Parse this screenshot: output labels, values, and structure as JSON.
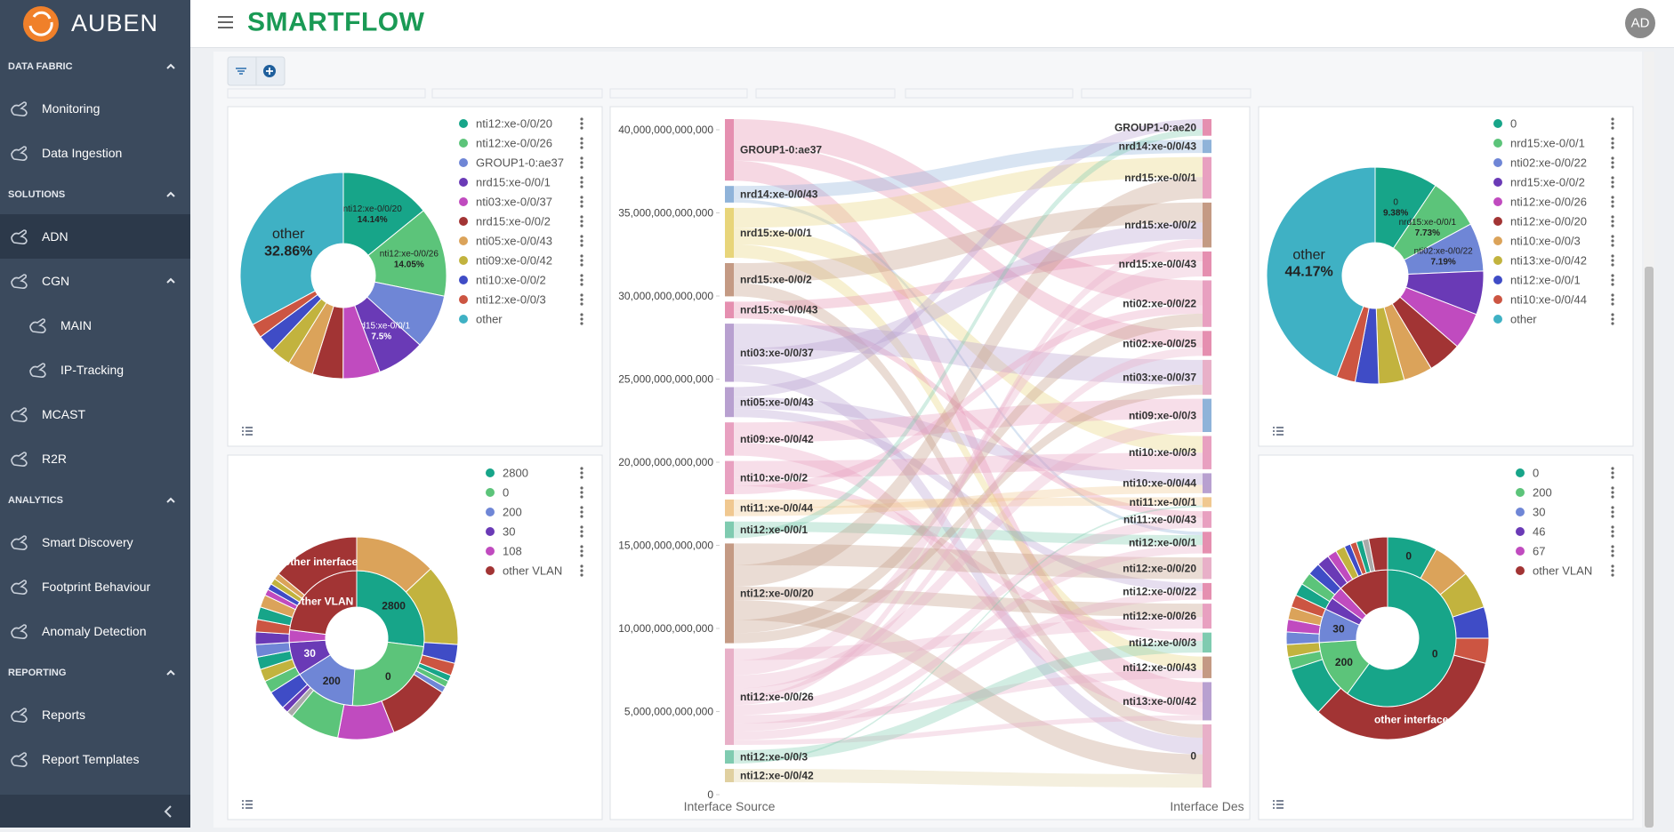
{
  "sidebar": {
    "logo": "AUBEN",
    "sections": [
      {
        "title": "DATA FABRIC",
        "items": [
          {
            "label": "Monitoring"
          },
          {
            "label": "Data Ingestion"
          }
        ]
      },
      {
        "title": "SOLUTIONS",
        "items": [
          {
            "label": "ADN",
            "active": true
          },
          {
            "label": "CGN",
            "items": [
              {
                "label": "MAIN"
              },
              {
                "label": "IP-Tracking"
              }
            ]
          },
          {
            "label": "MCAST"
          },
          {
            "label": "R2R"
          }
        ]
      },
      {
        "title": "ANALYTICS",
        "items": [
          {
            "label": "Smart Discovery"
          },
          {
            "label": "Footprint Behaviour"
          },
          {
            "label": "Anomaly Detection"
          }
        ]
      },
      {
        "title": "REPORTING",
        "items": [
          {
            "label": "Reports"
          },
          {
            "label": "Report Templates"
          }
        ]
      }
    ]
  },
  "header": {
    "brand": "SMARTFLOW",
    "avatar": "AD"
  },
  "chart_data": [
    {
      "type": "pie",
      "categories": [
        "nti12:xe-0/0/20",
        "nti12:xe-0/0/26",
        "GROUP1-0:ae37",
        "nrd15:xe-0/0/1",
        "nti03:xe-0/0/37",
        "nrd15:xe-0/0/2",
        "nti05:xe-0/0/43",
        "nti09:xe-0/0/42",
        "nti10:xe-0/0/2",
        "nti12:xe-0/0/3",
        "other"
      ],
      "values": [
        14.14,
        14.05,
        8.5,
        7.5,
        5.8,
        4.8,
        4,
        3.2,
        2.8,
        2.25,
        32.86
      ],
      "colors": [
        "#17a589",
        "#5cc47a",
        "#6f86d6",
        "#6a3ab6",
        "#c04bbf",
        "#a23434",
        "#dba35a",
        "#c2b33e",
        "#3f4cc6",
        "#cc5542",
        "#3fb1c4"
      ],
      "slice_labels": [
        "nti12:xe-0/0/20",
        "nti12:xe-0/0/26",
        null,
        "nrd15:xe-0/0/1",
        null,
        null,
        null,
        null,
        null,
        null,
        "other"
      ],
      "value_labels": [
        "14.14%",
        "14.05%",
        null,
        "7.5%",
        null,
        null,
        null,
        null,
        null,
        null,
        "32.86%"
      ]
    },
    {
      "type": "sunburst",
      "categories": [
        "2800",
        "0",
        "200",
        "30",
        "108",
        "other VLAN"
      ],
      "values": [
        27,
        24,
        15,
        8,
        3,
        23
      ],
      "colors": [
        "#17a589",
        "#5cc47a",
        "#6f86d6",
        "#6a3ab6",
        "#c04bbf",
        "#a23434"
      ],
      "slice_labels": [
        "2800",
        "0",
        "200",
        "30",
        null,
        "other VLAN"
      ],
      "outer": {
        "values": [
          13,
          13,
          3,
          2,
          1,
          1,
          1,
          10,
          9,
          8,
          1,
          1,
          3,
          2,
          2,
          2,
          2,
          2,
          2,
          2,
          2,
          1,
          1,
          1,
          1,
          14
        ],
        "colors": [
          "#dba35a",
          "#c2b33e",
          "#3f4cc6",
          "#cc5542",
          "#17a589",
          "#5cc47a",
          "#6f86d6",
          "#a23434",
          "#c04bbf",
          "#5cc47a",
          "#aaaaaa",
          "#6a3ab6",
          "#3f4cc6",
          "#5cc47a",
          "#c2b33e",
          "#17a589",
          "#6f86d6",
          "#6a3ab6",
          "#cc5542",
          "#17a589",
          "#dba35a",
          "#c04bbf",
          "#3f4cc6",
          "#c2b33e",
          "#dba35a",
          "#a23434"
        ],
        "labels": [
          null,
          null,
          null,
          null,
          null,
          null,
          null,
          null,
          null,
          null,
          null,
          null,
          null,
          null,
          null,
          null,
          null,
          null,
          null,
          null,
          null,
          null,
          null,
          null,
          null,
          "other interface"
        ]
      }
    },
    {
      "type": "sankey",
      "ylim": [
        0,
        40000000000000
      ],
      "yticks": [
        0,
        {
          "value": 5000000000000,
          "label": "5,000,000,000,000"
        },
        {
          "value": 10000000000000,
          "label": "10,000,000,000,000"
        },
        {
          "value": 15000000000000,
          "label": "15,000,000,000,000"
        },
        {
          "value": 20000000000000,
          "label": "20,000,000,000,000"
        },
        {
          "value": 25000000000000,
          "label": "25,000,000,000,000"
        },
        {
          "value": 30000000000000,
          "label": "30,000,000,000,000"
        },
        {
          "value": 35000000000000,
          "label": "35,000,000,000,000"
        },
        {
          "value": 40000000000000,
          "label": "40,000,000,000,000"
        }
      ],
      "source_title": "Interface Source",
      "target_title": "Interface Des",
      "sources": [
        "GROUP1-0:ae37",
        "nrd14:xe-0/0/43",
        "nrd15:xe-0/0/1",
        "nrd15:xe-0/0/2",
        "nrd15:xe-0/0/43",
        "nti03:xe-0/0/37",
        "nti05:xe-0/0/43",
        "nti09:xe-0/0/42",
        "nti10:xe-0/0/2",
        "nti11:xe-0/0/44",
        "nti12:xe-0/0/1",
        "nti12:xe-0/0/20",
        "nti12:xe-0/0/26",
        "nti12:xe-0/0/3",
        "nti12:xe-0/0/42"
      ],
      "source_colors": [
        "#e58fb0",
        "#8fb3d9",
        "#e8d57a",
        "#c49a84",
        "#e58fb0",
        "#b8a0d0",
        "#b8a0d0",
        "#e8a0c0",
        "#e8a0c0",
        "#f0c890",
        "#7fcbb0",
        "#c49a84",
        "#e8b0c8",
        "#7fcbb0",
        "#e0d0a0"
      ],
      "targets": [
        "GROUP1-0:ae20",
        "nrd14:xe-0/0/43",
        "nrd15:xe-0/0/1",
        "nrd15:xe-0/0/2",
        "nrd15:xe-0/0/43",
        "nti02:xe-0/0/22",
        "nti02:xe-0/0/25",
        "nti03:xe-0/0/37",
        "nti09:xe-0/0/3",
        "nti10:xe-0/0/3",
        "nti10:xe-0/0/44",
        "nti11:xe-0/0/1",
        "nti11:xe-0/0/43",
        "nti12:xe-0/0/1",
        "nti12:xe-0/0/20",
        "nti12:xe-0/0/22",
        "nti12:xe-0/0/26",
        "nti12:xe-0/0/3",
        "nti12:xe-0/0/43",
        "nti13:xe-0/0/42",
        "0"
      ],
      "target_colors": [
        "#e58fb0",
        "#8fb3d9",
        "#e8a0c0",
        "#c49a84",
        "#e58fb0",
        "#e8a0c0",
        "#e58fb0",
        "#e8b0c8",
        "#8fb3d9",
        "#e8a0c0",
        "#b8a0d0",
        "#f0c890",
        "#e8a0c0",
        "#e58fb0",
        "#e8b0c8",
        "#e58fb0",
        "#e8a0c0",
        "#7fcbb0",
        "#c49a84",
        "#b8a0d0",
        "#e8b0c8"
      ],
      "links": [
        [
          0,
          5,
          1500000000000.0
        ],
        [
          0,
          6,
          1000000000000.0
        ],
        [
          0,
          19,
          1200000000000.0
        ],
        [
          1,
          1,
          800000000000.0
        ],
        [
          1,
          13,
          200000000000.0
        ],
        [
          2,
          2,
          1200000000000.0
        ],
        [
          2,
          9,
          1000000000000.0
        ],
        [
          2,
          18,
          800000000000.0
        ],
        [
          3,
          3,
          1200000000000.0
        ],
        [
          3,
          20,
          800000000000.0
        ],
        [
          4,
          4,
          600000000000.0
        ],
        [
          4,
          12,
          400000000000.0
        ],
        [
          5,
          7,
          1500000000000.0
        ],
        [
          5,
          3,
          1000000000000.0
        ],
        [
          5,
          20,
          1000000000000.0
        ],
        [
          6,
          0,
          600000000000.0
        ],
        [
          6,
          10,
          700000000000.0
        ],
        [
          6,
          15,
          500000000000.0
        ],
        [
          7,
          8,
          1200000000000.0
        ],
        [
          7,
          19,
          800000000000.0
        ],
        [
          8,
          9,
          1000000000000.0
        ],
        [
          8,
          17,
          500000000000.0
        ],
        [
          8,
          5,
          500000000000.0
        ],
        [
          9,
          11,
          500000000000.0
        ],
        [
          9,
          10,
          500000000000.0
        ],
        [
          10,
          13,
          600000000000.0
        ],
        [
          10,
          0,
          400000000000.0
        ],
        [
          11,
          14,
          1300000000000.0
        ],
        [
          11,
          2,
          1300000000000.0
        ],
        [
          11,
          16,
          800000000000.0
        ],
        [
          11,
          20,
          1200000000000.0
        ],
        [
          11,
          5,
          800000000000.0
        ],
        [
          11,
          7,
          600000000000.0
        ],
        [
          12,
          16,
          700000000000.0
        ],
        [
          12,
          4,
          900000000000.0
        ],
        [
          12,
          8,
          800000000000.0
        ],
        [
          12,
          6,
          500000000000.0
        ],
        [
          12,
          3,
          500000000000.0
        ],
        [
          12,
          12,
          600000000000.0
        ],
        [
          12,
          18,
          500000000000.0
        ],
        [
          12,
          13,
          500000000000.0
        ],
        [
          12,
          15,
          500000000000.0
        ],
        [
          12,
          19,
          300000000000.0
        ],
        [
          13,
          17,
          700000000000.0
        ],
        [
          13,
          11,
          100000000000.0
        ],
        [
          14,
          20,
          800000000000.0
        ]
      ]
    },
    {
      "type": "pie",
      "categories": [
        "0",
        "nrd15:xe-0/0/1",
        "nti02:xe-0/0/22",
        "nrd15:xe-0/0/2",
        "nti12:xe-0/0/26",
        "nti12:xe-0/0/20",
        "nti10:xe-0/0/3",
        "nti13:xe-0/0/42",
        "nti12:xe-0/0/1",
        "nti10:xe-0/0/44",
        "other"
      ],
      "values": [
        9.38,
        7.73,
        7.19,
        6.5,
        5.5,
        5,
        4.3,
        3.8,
        3.5,
        2.8,
        44.17
      ],
      "colors": [
        "#17a589",
        "#5cc47a",
        "#6f86d6",
        "#6a3ab6",
        "#c04bbf",
        "#a23434",
        "#dba35a",
        "#c2b33e",
        "#3f4cc6",
        "#cc5542",
        "#3fb1c4"
      ],
      "slice_labels": [
        "0",
        "nrd15:xe-0/0/1",
        "nti02:xe-0/0/22",
        null,
        null,
        null,
        null,
        null,
        null,
        null,
        "other"
      ],
      "value_labels": [
        "9.38%",
        "7.73%",
        "7.19%",
        null,
        null,
        null,
        null,
        null,
        null,
        null,
        "44.17%"
      ]
    },
    {
      "type": "sunburst",
      "categories": [
        "0",
        "200",
        "30",
        "46",
        "67",
        "other VLAN"
      ],
      "values": [
        60,
        14,
        8,
        3,
        3,
        12
      ],
      "colors": [
        "#17a589",
        "#5cc47a",
        "#6f86d6",
        "#6a3ab6",
        "#c04bbf",
        "#a23434"
      ],
      "slice_labels": [
        "0",
        "200",
        "30",
        null,
        null,
        null
      ],
      "outer": {
        "values": [
          8,
          6,
          6,
          5,
          4,
          33,
          8,
          2,
          2,
          2,
          2,
          2,
          2,
          2,
          2,
          2,
          2,
          1.5,
          1.5,
          1,
          1,
          1,
          1,
          3
        ],
        "colors": [
          "#17a589",
          "#dba35a",
          "#c2b33e",
          "#3f4cc6",
          "#cc5542",
          "#a23434",
          "#17a589",
          "#5cc47a",
          "#c2b33e",
          "#6f86d6",
          "#c04bbf",
          "#dba35a",
          "#cc5542",
          "#17a589",
          "#5cc47a",
          "#3f4cc6",
          "#6a3ab6",
          "#c04bbf",
          "#c2b33e",
          "#3f4cc6",
          "#cc5542",
          "#17a589",
          "#aaaaaa",
          "#a23434"
        ],
        "labels": [
          "0",
          null,
          null,
          null,
          null,
          "other interface",
          null,
          null,
          null,
          null,
          null,
          null,
          null,
          null,
          null,
          null,
          null,
          null,
          null,
          null,
          null,
          null,
          null,
          null
        ]
      }
    }
  ]
}
